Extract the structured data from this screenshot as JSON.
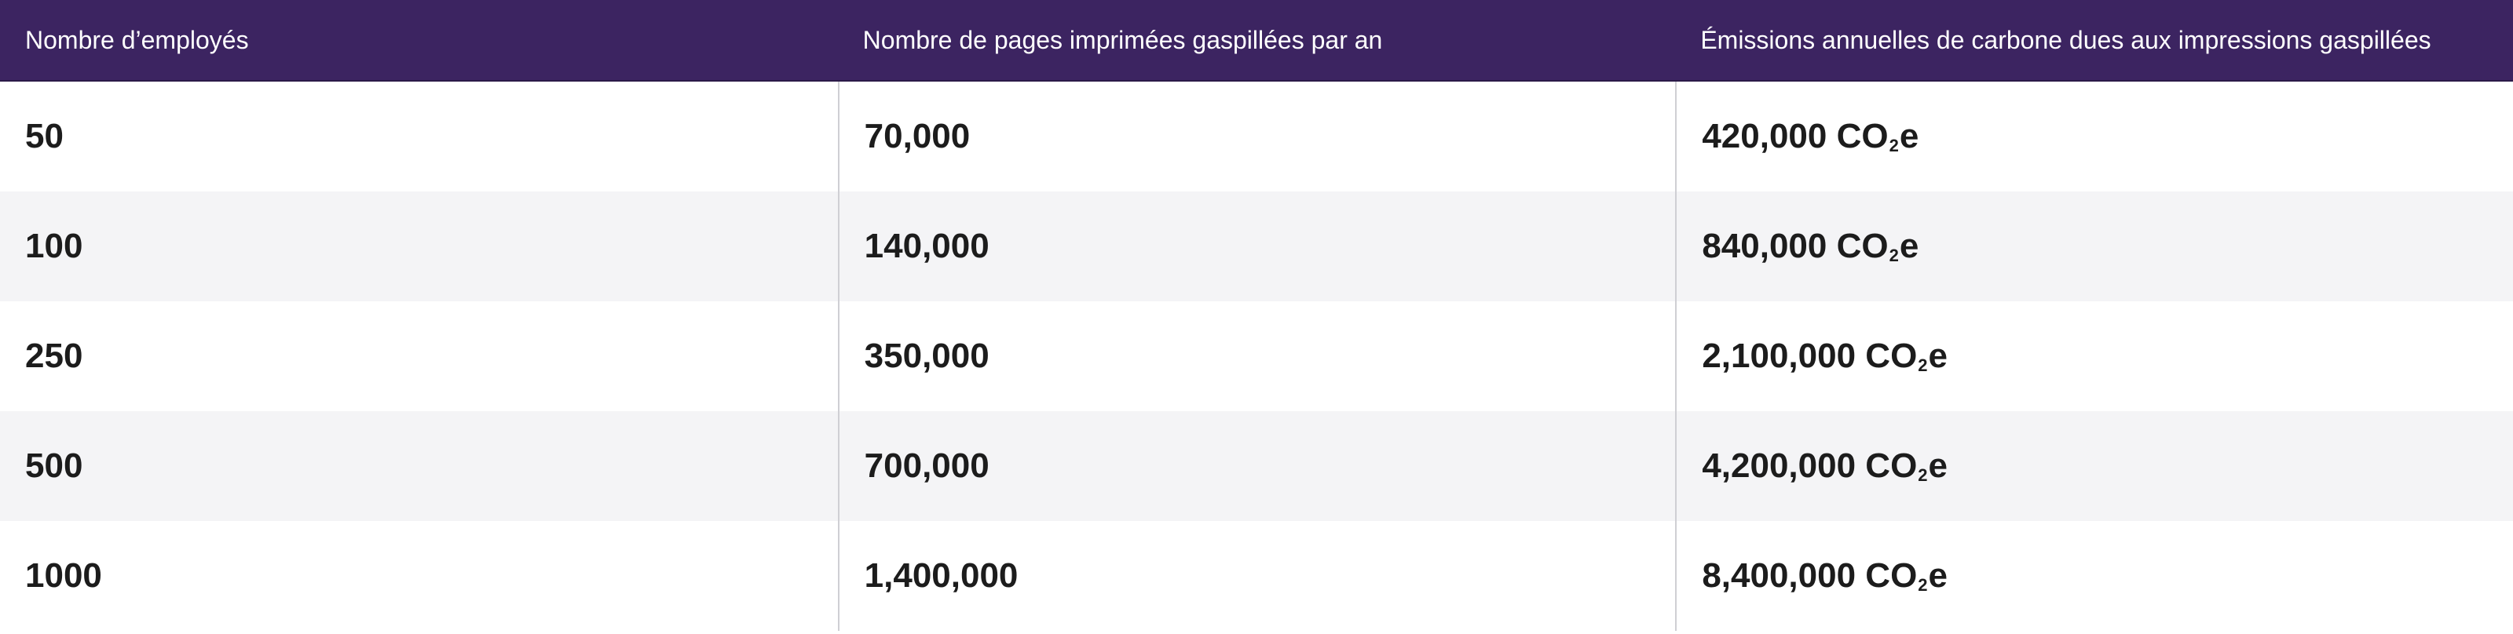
{
  "table": {
    "headers": [
      "Nombre d’employés",
      "Nombre de pages imprimées gaspillées par an",
      "Émissions annuelles de carbone dues aux impressions gaspillées"
    ],
    "rows": [
      {
        "employees": "50",
        "pages": "70,000",
        "emissions": "420,000",
        "unit_co": "CO",
        "unit_sub": "2",
        "unit_e": "e"
      },
      {
        "employees": "100",
        "pages": "140,000",
        "emissions": "840,000",
        "unit_co": "CO",
        "unit_sub": "2",
        "unit_e": "e"
      },
      {
        "employees": "250",
        "pages": "350,000",
        "emissions": "2,100,000",
        "unit_co": "CO",
        "unit_sub": "2",
        "unit_e": "e"
      },
      {
        "employees": "500",
        "pages": "700,000",
        "emissions": "4,200,000",
        "unit_co": "CO",
        "unit_sub": "2",
        "unit_e": "e"
      },
      {
        "employees": "1000",
        "pages": "1,400,000",
        "emissions": "8,400,000",
        "unit_co": "CO",
        "unit_sub": "2",
        "unit_e": "e"
      }
    ]
  },
  "colors": {
    "header_bg": "#3c2461",
    "header_text": "#ffffff",
    "row_alt_bg": "#f4f4f6",
    "divider": "#cfcfd4"
  }
}
